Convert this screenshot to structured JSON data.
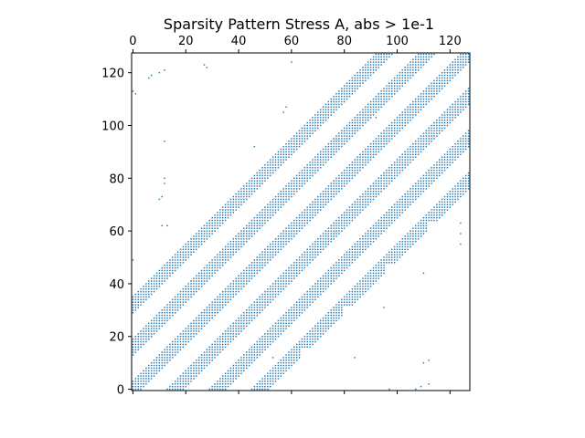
{
  "chart_data": {
    "type": "scatter",
    "title": "Sparsity Pattern Stress A, abs > 1e-1",
    "matrix_size": [
      128,
      128
    ],
    "xlim": [
      -0.5,
      127.5
    ],
    "ylim": [
      127.5,
      -0.5
    ],
    "x_axis_position": "top",
    "x_ticks": [
      0,
      20,
      40,
      60,
      80,
      100,
      120
    ],
    "y_ticks": [
      0,
      20,
      40,
      60,
      80,
      100,
      120
    ],
    "x_tick_labels": [
      "0",
      "20",
      "40",
      "60",
      "80",
      "100",
      "120"
    ],
    "y_tick_labels": [
      "0",
      "20",
      "40",
      "60",
      "80",
      "100",
      "120"
    ],
    "marker_color": "#1f77b4",
    "grid": false,
    "legend": "none",
    "block_bands": {
      "block_size": 16,
      "half_width": 3,
      "block_offsets": [
        -2,
        -1,
        0,
        1,
        2,
        3
      ],
      "clip_outside_matrix": true
    },
    "nonzeros": [
      [
        0,
        97
      ],
      [
        0,
        107
      ],
      [
        1,
        109
      ],
      [
        2,
        112
      ],
      [
        10,
        110
      ],
      [
        11,
        112
      ],
      [
        12,
        53
      ],
      [
        12,
        84
      ],
      [
        31,
        95
      ],
      [
        44,
        110
      ],
      [
        49,
        0
      ],
      [
        55,
        124
      ],
      [
        59,
        124
      ],
      [
        62,
        11
      ],
      [
        62,
        13
      ],
      [
        63,
        124
      ],
      [
        72,
        10
      ],
      [
        73,
        11
      ],
      [
        73,
        122
      ],
      [
        74,
        124
      ],
      [
        78,
        12
      ],
      [
        80,
        12
      ],
      [
        92,
        46
      ],
      [
        94,
        12
      ],
      [
        103,
        92
      ],
      [
        105,
        57
      ],
      [
        107,
        58
      ],
      [
        112,
        1
      ],
      [
        113,
        0
      ],
      [
        118,
        6
      ],
      [
        119,
        7
      ],
      [
        120,
        10
      ],
      [
        121,
        12
      ],
      [
        122,
        28
      ],
      [
        123,
        27
      ],
      [
        124,
        60
      ]
    ]
  }
}
